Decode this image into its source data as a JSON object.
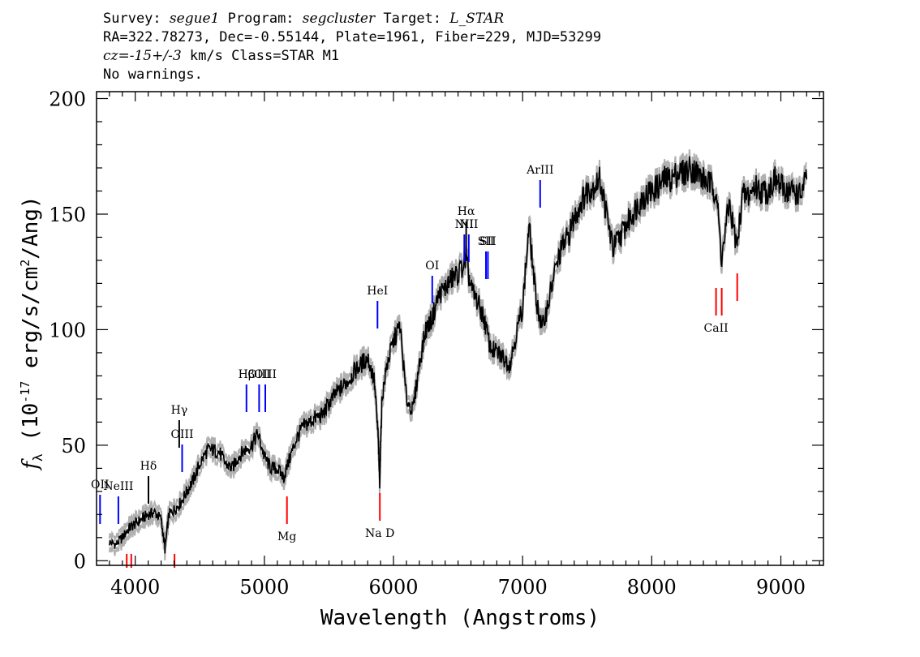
{
  "header": {
    "survey_label": "Survey:",
    "survey": "segue1",
    "program_label": "Program:",
    "program": "segcluster",
    "target_label": "Target:",
    "target": "L_STAR",
    "line2": "RA=322.78273, Dec=-0.55144, Plate=1961, Fiber=229, MJD=53299",
    "cz_label": "cz=",
    "cz_value": "-15+/-3",
    "cz_rest": " km/s Class=STAR M1",
    "line4": "No warnings."
  },
  "chart_data": {
    "type": "line",
    "xlabel": "Wavelength (Angstroms)",
    "ylabel": "f_λ (10^-17 erg/s/cm^2/Ang)",
    "xlim": [
      3700,
      9330
    ],
    "ylim": [
      -2,
      203
    ],
    "xticks": [
      4000,
      5000,
      6000,
      7000,
      8000,
      9000
    ],
    "yticks": [
      0,
      50,
      100,
      150,
      200
    ],
    "colors": {
      "spectrum": "#000000",
      "error_band": "#b0b0b0",
      "emission": "#0000ff",
      "absorption": "#ff0000",
      "other": "#000000"
    },
    "spectrum": {
      "x": [
        3800,
        3850,
        3900,
        3950,
        4000,
        4050,
        4100,
        4150,
        4200,
        4230,
        4260,
        4300,
        4350,
        4400,
        4450,
        4500,
        4560,
        4600,
        4650,
        4700,
        4750,
        4800,
        4850,
        4900,
        4950,
        5000,
        5050,
        5100,
        5150,
        5200,
        5250,
        5300,
        5350,
        5400,
        5450,
        5500,
        5550,
        5600,
        5650,
        5700,
        5750,
        5800,
        5850,
        5880,
        5893,
        5910,
        5950,
        6000,
        6050,
        6100,
        6150,
        6200,
        6250,
        6300,
        6350,
        6400,
        6450,
        6500,
        6560,
        6600,
        6650,
        6700,
        6750,
        6800,
        6850,
        6900,
        6950,
        7000,
        7050,
        7100,
        7150,
        7200,
        7250,
        7300,
        7350,
        7400,
        7450,
        7500,
        7550,
        7600,
        7650,
        7700,
        7750,
        7800,
        7850,
        7900,
        7950,
        8000,
        8050,
        8100,
        8150,
        8200,
        8250,
        8300,
        8350,
        8400,
        8450,
        8500,
        8542,
        8600,
        8662,
        8700,
        8750,
        8800,
        8850,
        8900,
        8950,
        9000,
        9050,
        9100,
        9150,
        9200
      ],
      "y": [
        8,
        7,
        10,
        14,
        16,
        18,
        20,
        21,
        18,
        5,
        20,
        22,
        25,
        30,
        35,
        42,
        48,
        48,
        47,
        42,
        40,
        45,
        48,
        50,
        55,
        45,
        40,
        40,
        36,
        45,
        53,
        58,
        60,
        62,
        63,
        68,
        72,
        75,
        78,
        82,
        85,
        88,
        78,
        55,
        34,
        70,
        85,
        95,
        102,
        70,
        65,
        85,
        100,
        105,
        115,
        118,
        122,
        124,
        130,
        118,
        112,
        105,
        92,
        90,
        88,
        85,
        98,
        110,
        145,
        115,
        100,
        112,
        125,
        135,
        140,
        148,
        155,
        160,
        162,
        165,
        150,
        135,
        140,
        145,
        150,
        155,
        158,
        160,
        162,
        165,
        165,
        168,
        168,
        170,
        168,
        165,
        163,
        160,
        130,
        155,
        135,
        158,
        158,
        162,
        160,
        160,
        165,
        162,
        160,
        160,
        158,
        165
      ]
    },
    "line_markers": [
      {
        "label": "OII",
        "x": 3727,
        "kind": "emission"
      },
      {
        "label": "NeIII",
        "x": 3869,
        "kind": "emission"
      },
      {
        "label": "Hδ",
        "x": 4102,
        "kind": "other"
      },
      {
        "label": "Hγ",
        "x": 4340,
        "kind": "other"
      },
      {
        "label": "OIII",
        "x": 4363,
        "kind": "emission"
      },
      {
        "label": "Hβ",
        "x": 4861,
        "kind": "emission"
      },
      {
        "label": "OIII",
        "x": 4959,
        "kind": "emission"
      },
      {
        "label": "OIII",
        "x": 5007,
        "kind": "emission"
      },
      {
        "label": "HeI",
        "x": 5876,
        "kind": "emission"
      },
      {
        "label": "OI",
        "x": 6300,
        "kind": "emission"
      },
      {
        "label": "NII",
        "x": 6548,
        "kind": "emission"
      },
      {
        "label": "Hα",
        "x": 6563,
        "kind": "other"
      },
      {
        "label": "NII",
        "x": 6583,
        "kind": "emission"
      },
      {
        "label": "SII",
        "x": 6716,
        "kind": "emission"
      },
      {
        "label": "SII",
        "x": 6731,
        "kind": "emission"
      },
      {
        "label": "ArIII",
        "x": 7136,
        "kind": "emission"
      },
      {
        "label": "",
        "x": 3934,
        "kind": "absorption"
      },
      {
        "label": "",
        "x": 3969,
        "kind": "absorption"
      },
      {
        "label": "",
        "x": 4304,
        "kind": "absorption"
      },
      {
        "label": "Mg",
        "x": 5175,
        "kind": "absorption"
      },
      {
        "label": "Na D",
        "x": 5894,
        "kind": "absorption"
      },
      {
        "label": "CaII",
        "x": 8498,
        "kind": "absorption"
      },
      {
        "label": "",
        "x": 8542,
        "kind": "absorption"
      },
      {
        "label": "",
        "x": 8662,
        "kind": "absorption"
      }
    ]
  }
}
